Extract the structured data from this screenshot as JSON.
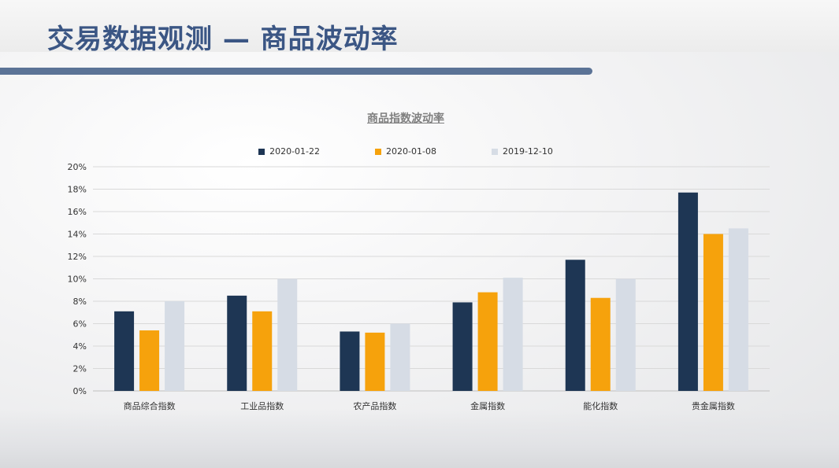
{
  "page": {
    "title": "交易数据观测 — 商品波动率"
  },
  "chart_data": {
    "type": "bar",
    "title": "商品指数波动率",
    "categories": [
      "商品综合指数",
      "工业品指数",
      "农产品指数",
      "金属指数",
      "能化指数",
      "贵金属指数"
    ],
    "series": [
      {
        "name": "2020-01-22",
        "color": "#1e3654",
        "values": [
          7.1,
          8.5,
          5.3,
          7.9,
          11.7,
          17.7
        ]
      },
      {
        "name": "2020-01-08",
        "color": "#f6a20c",
        "values": [
          5.4,
          7.1,
          5.2,
          8.8,
          8.3,
          14.0
        ]
      },
      {
        "name": "2019-12-10",
        "color": "#d6dce5",
        "values": [
          8.0,
          10.0,
          6.0,
          10.1,
          10.0,
          14.5
        ]
      }
    ],
    "y_ticks": [
      "0%",
      "2%",
      "4%",
      "6%",
      "8%",
      "10%",
      "12%",
      "14%",
      "16%",
      "18%",
      "20%"
    ],
    "ylim": [
      0,
      20
    ],
    "xlabel": "",
    "ylabel": "",
    "grid": true,
    "legend_position": "top"
  }
}
